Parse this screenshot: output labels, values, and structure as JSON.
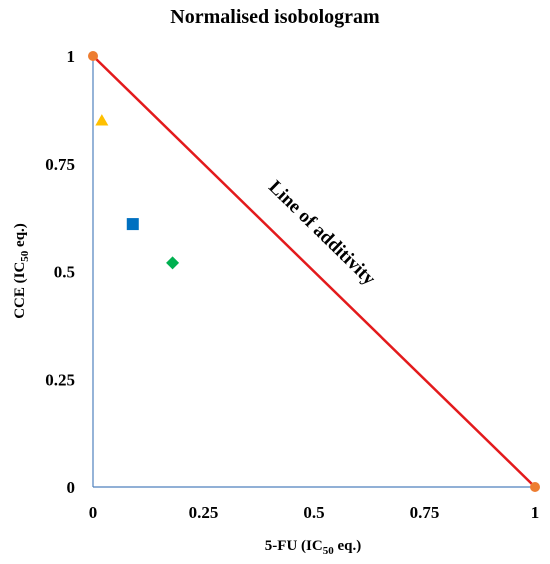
{
  "chart_data": {
    "type": "scatter",
    "title": "Normalised isobologram",
    "xlabel": {
      "main": "5-FU (IC",
      "sub": "50",
      "tail": " eq.)"
    },
    "ylabel": {
      "main": "CCE (IC",
      "sub": "50",
      "tail": " eq.)"
    },
    "xlim": [
      0,
      1
    ],
    "ylim": [
      0,
      1
    ],
    "x_ticks": [
      {
        "value": 0,
        "label": "0"
      },
      {
        "value": 0.25,
        "label": "0.25"
      },
      {
        "value": 0.5,
        "label": "0.5"
      },
      {
        "value": 0.75,
        "label": "0.75"
      },
      {
        "value": 1,
        "label": "1"
      }
    ],
    "y_ticks": [
      {
        "value": 0,
        "label": "0"
      },
      {
        "value": 0.25,
        "label": "0.25"
      },
      {
        "value": 0.5,
        "label": "0.5"
      },
      {
        "value": 0.75,
        "label": "0.75"
      },
      {
        "value": 1,
        "label": "1"
      }
    ],
    "grid": false,
    "axis_color": "#4f81bd",
    "additivity_line": {
      "from": [
        0,
        1
      ],
      "to": [
        1,
        0
      ],
      "color": "#e31a1c",
      "annotation": "Line of additivity"
    },
    "endpoints": [
      {
        "x": 0,
        "y": 1,
        "shape": "circle",
        "color": "#ed7d31"
      },
      {
        "x": 1,
        "y": 0,
        "shape": "circle",
        "color": "#ed7d31"
      }
    ],
    "points": [
      {
        "x": 0.02,
        "y": 0.85,
        "shape": "triangle",
        "color": "#ffc000"
      },
      {
        "x": 0.09,
        "y": 0.61,
        "shape": "square",
        "color": "#0070c0"
      },
      {
        "x": 0.18,
        "y": 0.52,
        "shape": "diamond",
        "color": "#00b050"
      }
    ]
  }
}
